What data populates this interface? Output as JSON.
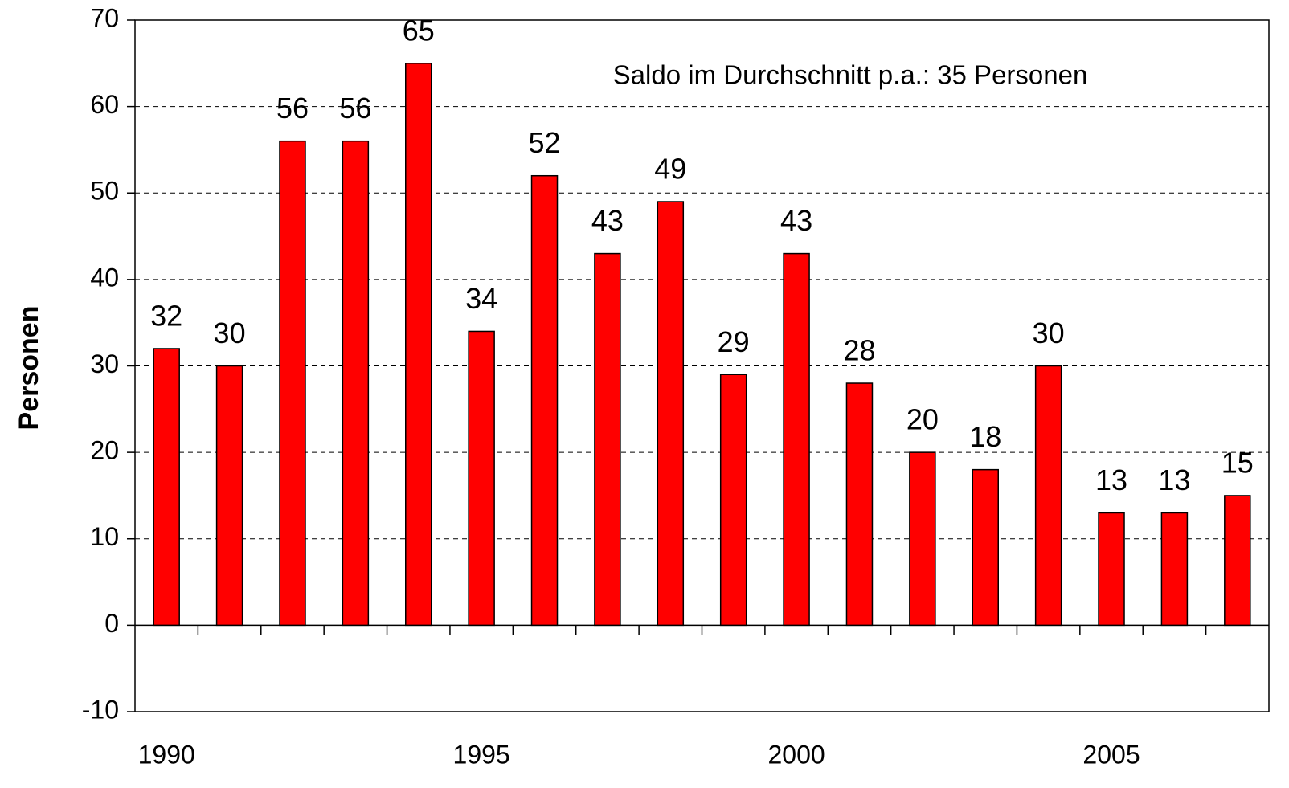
{
  "chart_data": {
    "type": "bar",
    "annotation": "Saldo im Durchschnitt p.a.: 35 Personen",
    "y_label": "Personen",
    "categories": [
      "1990",
      null,
      null,
      null,
      null,
      "1995",
      null,
      null,
      null,
      null,
      "2000",
      null,
      null,
      null,
      null,
      "2005",
      null,
      null
    ],
    "values": [
      32,
      30,
      56,
      56,
      65,
      34,
      52,
      43,
      49,
      29,
      43,
      28,
      20,
      18,
      30,
      13,
      13,
      15
    ],
    "color": "#ff0000",
    "ylim": [
      -10,
      70
    ],
    "yticks": [
      -10,
      0,
      10,
      20,
      30,
      40,
      50,
      60,
      70
    ],
    "grid": true
  }
}
